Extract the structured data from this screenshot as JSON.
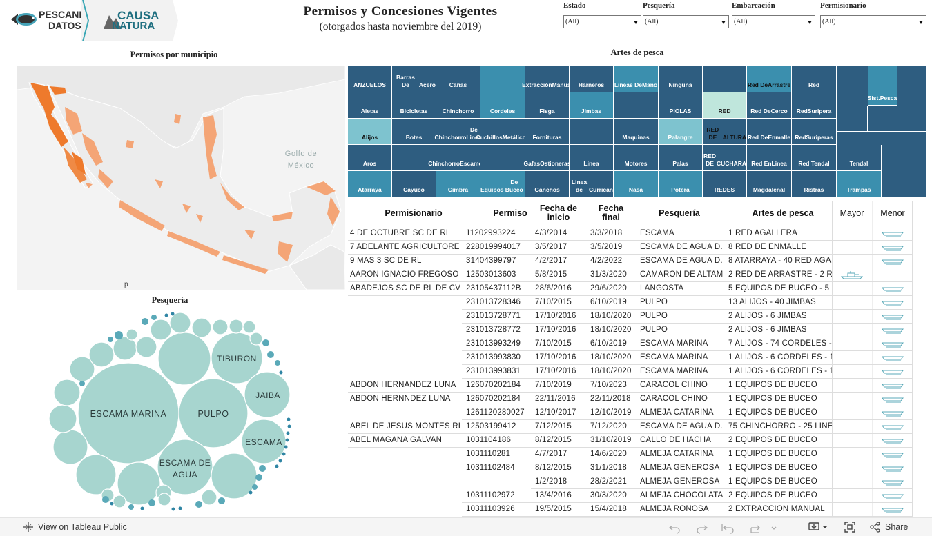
{
  "header": {
    "logo1_line1": "PESCANDO",
    "logo1_line2": "DATOS",
    "logo2_line1": "CAUSA",
    "logo2_line2": "NATURA",
    "title": "Permisos y Concesiones Vigentes",
    "subtitle": "(otorgados hasta noviembre del 2019)"
  },
  "filters": [
    {
      "label": "Estado",
      "value": "(All)"
    },
    {
      "label": "Pesquería",
      "value": "(All)"
    },
    {
      "label": "Embarcación",
      "value": "(All)"
    },
    {
      "label": "Permisionario",
      "value": "(All)"
    }
  ],
  "map": {
    "title": "Permisos por municipio",
    "gulf_label_1": "Golfo de",
    "gulf_label_2": "México",
    "footer_mark": "p",
    "colors": {
      "low": "#f4a576",
      "high": "#ee7a2c",
      "land": "#ececec",
      "sea": "#f3f3f3"
    }
  },
  "bubbles": {
    "title": "Pesquería",
    "labels": {
      "escama_marina": "ESCAMA MARINA",
      "pulpo": "PULPO",
      "tiburon": "TIBURON",
      "jaiba": "JAIBA",
      "escama": "ESCAMA",
      "escama_de_agua_1": "ESCAMA DE",
      "escama_de_agua_2": "AGUA"
    },
    "colors": {
      "light": "#a7d5cf",
      "mid": "#5aa9b8",
      "dark": "#2f85a4"
    }
  },
  "artes": {
    "title": "Artes de pesca",
    "cells": [
      [
        "ANZUELOS"
      ],
      [
        "Barras De",
        "Acero"
      ],
      [
        "Cañas"
      ],
      [],
      [
        "Extracción",
        "Manual"
      ],
      [
        "Harneros"
      ],
      [
        "Lineas De",
        "Mano"
      ],
      [
        "Ninguna"
      ],
      [],
      [
        "Red De",
        "Arrastre"
      ],
      [
        "Red"
      ],
      [
        "Sist.",
        "Pesca"
      ],
      [
        "Aletas"
      ],
      [
        "Bicicletas"
      ],
      [
        "Chinchorro"
      ],
      [
        "Cordeles"
      ],
      [
        "Fisga"
      ],
      [
        "Jimbas"
      ],
      [],
      [
        "PIOLAS"
      ],
      [
        "RED"
      ],
      [
        "Red De",
        "Cerco"
      ],
      [
        "Red",
        "Suripera"
      ],
      [
        "Alijos"
      ],
      [
        "Botes"
      ],
      [
        "Chinchorro",
        "De Linea"
      ],
      [
        "Cuchillos",
        "Metálicos"
      ],
      [
        "Fornituras"
      ],
      [],
      [
        "Maquinas"
      ],
      [
        "Palangre"
      ],
      [
        "RED DE",
        "ALTURA"
      ],
      [
        "Red De",
        "Enmalle"
      ],
      [
        "Red",
        "Suriperas"
      ],
      [
        "Aros"
      ],
      [],
      [
        "Chinchorro",
        "Escamero"
      ],
      [],
      [
        "Gafas",
        "Ostioneras"
      ],
      [
        "Linea"
      ],
      [
        "Motores"
      ],
      [
        "Palas"
      ],
      [
        "RED DE",
        "CUCHARA"
      ],
      [
        "Red En",
        "Linea"
      ],
      [
        "Red Tendal"
      ],
      [
        "Tendal"
      ],
      [
        "Atarraya"
      ],
      [
        "Cayuco"
      ],
      [
        "Cimbra"
      ],
      [
        "Equipos",
        "De Buceo"
      ],
      [
        "Ganchos"
      ],
      [
        "Linea de",
        "Curricán"
      ],
      [
        "Nasa"
      ],
      [
        "Potera"
      ],
      [
        "REDES"
      ],
      [
        "Magdalena",
        "I"
      ],
      [
        "Ristras"
      ],
      [
        "Trampas"
      ]
    ],
    "colors": {
      "dark": "#2e5d80",
      "mid": "#3b8fae",
      "light": "#7ec3cf",
      "pale": "#bfe6dc"
    }
  },
  "table": {
    "headers": [
      "Permisionario",
      "Permiso",
      "Fecha de inicio",
      "Fecha final",
      "Pesquería",
      "Artes de pesca",
      "Mayor",
      "Menor"
    ],
    "rows": [
      [
        "4 DE OCTUBRE SC DE RL",
        "11202993224",
        "4/3/2014",
        "3/3/2018",
        "ESCAMA",
        "1 RED AGALLERA",
        "Menor"
      ],
      [
        "7 ADELANTE AGRICULTORE..",
        "228019994017",
        "3/5/2017",
        "3/5/2019",
        "ESCAMA DE AGUA D..",
        "8 RED DE ENMALLE",
        "Menor"
      ],
      [
        "9 MAS 3 SC DE RL",
        "31404399797",
        "4/2/2017",
        "4/2/2022",
        "ESCAMA DE AGUA D..",
        "8 ATARRAYA - 40 RED AGA..",
        "Menor"
      ],
      [
        "AARON IGNACIO FREGOSO ..",
        "12503013603",
        "5/8/2015",
        "31/3/2020",
        "CAMARON DE ALTAM..",
        "2 RED DE ARRASTRE - 2 R..",
        "Mayor"
      ],
      [
        "ABADEJOS SC DE RL DE CV",
        "23105437112B",
        "28/6/2016",
        "29/6/2020",
        "LANGOSTA",
        "5 EQUIPOS DE BUCEO - 5 ..",
        "Menor"
      ],
      [
        "",
        "231013728346",
        "7/10/2015",
        "6/10/2019",
        "PULPO",
        "13 ALIJOS - 40 JIMBAS",
        "Menor"
      ],
      [
        "",
        "231013728771",
        "17/10/2016",
        "18/10/2020",
        "PULPO",
        "2 ALIJOS - 6 JIMBAS",
        "Menor"
      ],
      [
        "",
        "231013728772",
        "17/10/2016",
        "18/10/2020",
        "PULPO",
        "2 ALIJOS - 6 JIMBAS",
        "Menor"
      ],
      [
        "",
        "231013993249",
        "7/10/2015",
        "6/10/2019",
        "ESCAMA MARINA",
        "7 ALIJOS - 74 CORDELES - ..",
        "Menor"
      ],
      [
        "",
        "231013993830",
        "17/10/2016",
        "18/10/2020",
        "ESCAMA MARINA",
        "1 ALIJOS - 6 CORDELES - 1..",
        "Menor"
      ],
      [
        "",
        "231013993831",
        "17/10/2016",
        "18/10/2020",
        "ESCAMA MARINA",
        "1 ALIJOS - 6 CORDELES - 1..",
        "Menor"
      ],
      [
        "ABDON HERNANDEZ LUNA",
        "126070202184",
        "7/10/2019",
        "7/10/2023",
        "CARACOL CHINO",
        "1 EQUIPOS DE BUCEO",
        "Menor"
      ],
      [
        "ABDON HERNNDEZ LUNA",
        "126070202184",
        "22/11/2016",
        "22/11/2018",
        "CARACOL CHINO",
        "1 EQUIPOS DE BUCEO",
        "Menor"
      ],
      [
        "",
        "1261120280027",
        "12/10/2017",
        "12/10/2019",
        "ALMEJA CATARINA",
        "1 EQUIPOS DE BUCEO",
        "Menor"
      ],
      [
        "ABEL DE JESUS MONTES RIV..",
        "12503199412",
        "7/12/2015",
        "7/12/2020",
        "ESCAMA DE AGUA D..",
        "75 CHINCHORRO - 25 LINE..",
        "Menor"
      ],
      [
        "ABEL MAGAÑA GALVAN",
        "1031104186",
        "8/12/2015",
        "31/10/2019",
        "CALLO DE HACHA",
        "2 EQUIPOS DE BUCEO",
        "Menor"
      ],
      [
        "",
        "1031110281",
        "4/7/2017",
        "14/6/2020",
        "ALMEJA CATARINA",
        "1 EQUIPOS DE BUCEO",
        "Menor"
      ],
      [
        "",
        "10311102484",
        "8/12/2015",
        "31/1/2018",
        "ALMEJA GENEROSA",
        "1 EQUIPOS DE BUCEO",
        "Menor"
      ],
      [
        "",
        "",
        "1/2/2018",
        "28/2/2021",
        "ALMEJA GENEROSA",
        "1 EQUIPOS DE BUCEO",
        "Menor"
      ],
      [
        "",
        "10311102972",
        "13/4/2016",
        "30/3/2020",
        "ALMEJA CHOCOLATA",
        "2 EQUIPOS DE BUCEO",
        "Menor"
      ],
      [
        "",
        "10311103926",
        "19/5/2015",
        "15/4/2018",
        "ALMEJA ROÑOSA",
        "2 EXTRACCION MANUAL",
        "Menor"
      ]
    ]
  },
  "footer": {
    "link": "View on Tableau Public",
    "share": "Share"
  }
}
